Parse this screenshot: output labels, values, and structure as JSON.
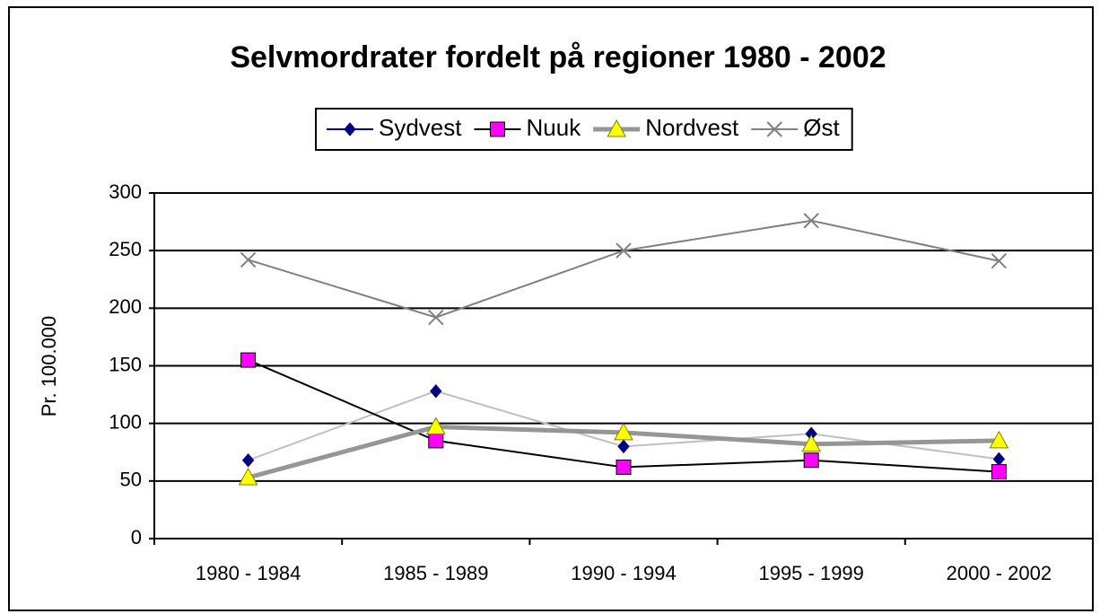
{
  "chart_data": {
    "type": "line",
    "title": "Selvmordrater fordelt på regioner 1980 - 2002",
    "y_label": "Pr. 100.000",
    "categories": [
      "1980 - 1984",
      "1985 - 1989",
      "1990 - 1994",
      "1995 - 1999",
      "2000 - 2002"
    ],
    "series": [
      {
        "name": "Sydvest",
        "color": "#c0c0c0",
        "marker_color": "#000080",
        "marker": "diamond",
        "values": [
          68,
          128,
          80,
          91,
          69
        ]
      },
      {
        "name": "Nuuk",
        "color": "#000000",
        "marker_color": "#ff00ff",
        "marker": "square",
        "values": [
          155,
          85,
          62,
          68,
          58
        ]
      },
      {
        "name": "Nordvest",
        "color": "#969696",
        "marker_color": "#ffff00",
        "marker": "triangle",
        "values": [
          53,
          97,
          92,
          82,
          85
        ]
      },
      {
        "name": "Øst",
        "color": "#808080",
        "marker_color": "#808080",
        "marker": "x",
        "values": [
          242,
          192,
          250,
          276,
          241
        ]
      }
    ],
    "ylim": [
      0,
      300
    ],
    "yticks": [
      0,
      50,
      100,
      150,
      200,
      250,
      300
    ],
    "grid": true,
    "legend": "top"
  }
}
